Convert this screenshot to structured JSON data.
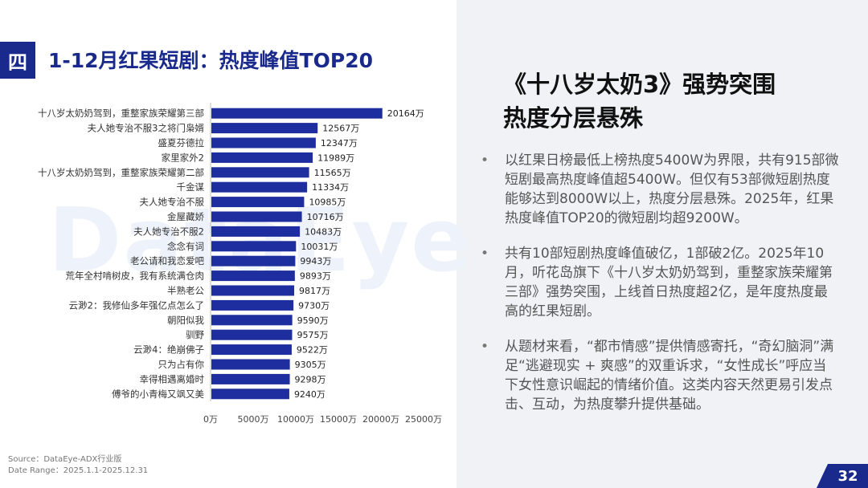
{
  "section": {
    "badge": "四",
    "title": "1-12月红果短剧：热度峰值TOP20"
  },
  "watermark": "DataEye",
  "chart_data": {
    "type": "bar",
    "orientation": "horizontal",
    "title": "",
    "categories": [
      "十八岁太奶奶驾到，重整家族荣耀第三部",
      "夫人她专治不服3之将门枭婿",
      "盛夏芬德拉",
      "家里家外2",
      "十八岁太奶奶驾到，重整家族荣耀第二部",
      "千金谋",
      "夫人她专治不服",
      "金屋藏娇",
      "夫人她专治不服2",
      "念念有词",
      "老公请和我恋爱吧",
      "荒年全村啃树皮，我有系统满仓肉",
      "半熟老公",
      "云渺2：我修仙多年强亿点怎么了",
      "朝阳似我",
      "驯野",
      "云渺4：绝崩佛子",
      "只为占有你",
      "幸得相遇离婚时",
      "傅爷的小青梅又飒又美"
    ],
    "values": [
      20164,
      12567,
      12347,
      11989,
      11565,
      11334,
      10985,
      10716,
      10483,
      10031,
      9943,
      9893,
      9817,
      9730,
      9590,
      9575,
      9522,
      9305,
      9298,
      9240
    ],
    "value_labels": [
      "20164万",
      "12567万",
      "12347万",
      "11989万",
      "11565万",
      "11334万",
      "10985万",
      "10716万",
      "10483万",
      "10031万",
      "9943万",
      "9893万",
      "9817万",
      "9730万",
      "9590万",
      "9575万",
      "9522万",
      "9305万",
      "9298万",
      "9240万"
    ],
    "xlim": [
      0,
      25000
    ],
    "xticks": [
      0,
      5000,
      10000,
      15000,
      20000,
      25000
    ],
    "xtick_labels": [
      "0万",
      "5000万",
      "10000万",
      "15000万",
      "20000万",
      "25000万"
    ],
    "bar_color": "#1e2e9e",
    "grid": false,
    "legend": "none"
  },
  "source": {
    "line1": "Source：DataEye-ADX行业版",
    "line2": "Date Range：2025.1.1-2025.12.31"
  },
  "right": {
    "title_line1": "《十八岁太奶3》强势突围",
    "title_line2": "热度分层悬殊",
    "bullets": [
      "以红果日榜最低上榜热度5400W为界限，共有915部微短剧最高热度峰值超5400W。但仅有53部微短剧热度能够达到8000W以上，热度分层悬殊。2025年，红果热度峰值TOP20的微短剧均超9200W。",
      "共有10部短剧热度峰值破亿，1部破2亿。2025年10月，听花岛旗下《十八岁太奶奶驾到，重整家族荣耀第三部》强势突围，上线首日热度超2亿，是年度热度最高的红果短剧。",
      "从题材来看，“都市情感”提供情感寄托，“奇幻脑洞”满足“逃避现实 + 爽感”的双重诉求，“女性成长”呼应当下女性意识崛起的情绪价值。这类内容天然更易引发点击、互动，为热度攀升提供基础。"
    ],
    "bullet_mark": "•"
  },
  "page_number": "32",
  "colors": {
    "accent": "#1a2a8c",
    "panel": "#f1f2f6"
  }
}
